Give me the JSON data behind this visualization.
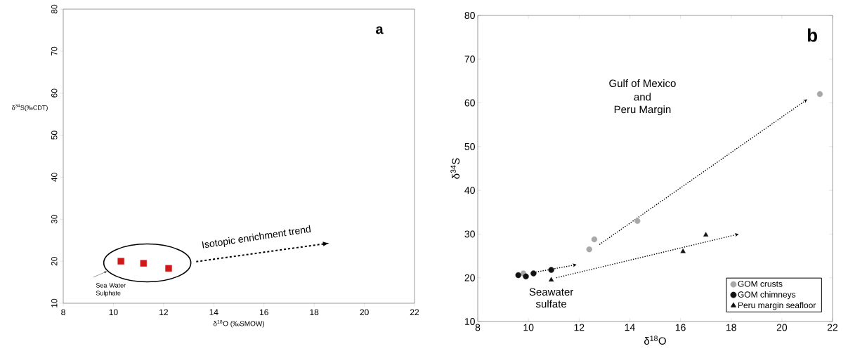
{
  "chart_data": [
    {
      "type": "scatter",
      "title": "a",
      "xlabel": "δ$^{18}$O (‰SMOW)",
      "ylabel": "δ$^{34}$S(‰CDT)",
      "x": [
        10.3,
        11.2,
        12.2
      ],
      "values": [
        20,
        19.5,
        18.3
      ],
      "color": "#d01818",
      "marker": "square",
      "xlim": [
        8,
        22
      ],
      "ylim": [
        10,
        80
      ],
      "xticks": [
        8,
        10,
        12,
        14,
        16,
        18,
        20,
        22
      ],
      "yticks": [
        10,
        20,
        30,
        40,
        50,
        60,
        70,
        80
      ],
      "annotations": [
        "Isotopic enrichment trend",
        "Sea Water Sulphate"
      ]
    },
    {
      "type": "scatter",
      "title": "b",
      "xlabel": "δ$^{18}$O",
      "ylabel": "δ$^{34}$S",
      "series": [
        {
          "name": "GOM crusts",
          "color": "#a8a8a8",
          "marker": "circle",
          "x": [
            9.8,
            12.4,
            12.6,
            14.3,
            21.5
          ],
          "values": [
            21,
            26.5,
            28.8,
            33,
            62
          ]
        },
        {
          "name": "GOM chimneys",
          "color": "#111111",
          "marker": "circle",
          "x": [
            9.6,
            9.9,
            10.2,
            10.9
          ],
          "values": [
            20.6,
            20.3,
            21,
            21.8
          ]
        },
        {
          "name": "Peru margin seafloor",
          "color": "#111111",
          "marker": "triangle",
          "x": [
            10.9,
            16.1,
            17
          ],
          "values": [
            19.5,
            26,
            29.8
          ]
        }
      ],
      "xlim": [
        8,
        22
      ],
      "ylim": [
        10,
        80
      ],
      "xticks": [
        8,
        10,
        12,
        14,
        16,
        18,
        20,
        22
      ],
      "yticks": [
        10,
        20,
        30,
        40,
        50,
        60,
        70,
        80
      ],
      "legend": "bottom right",
      "annotations": [
        "Gulf of Mexico",
        "and",
        "Peru Margin",
        "Seawater sulfate"
      ]
    }
  ]
}
